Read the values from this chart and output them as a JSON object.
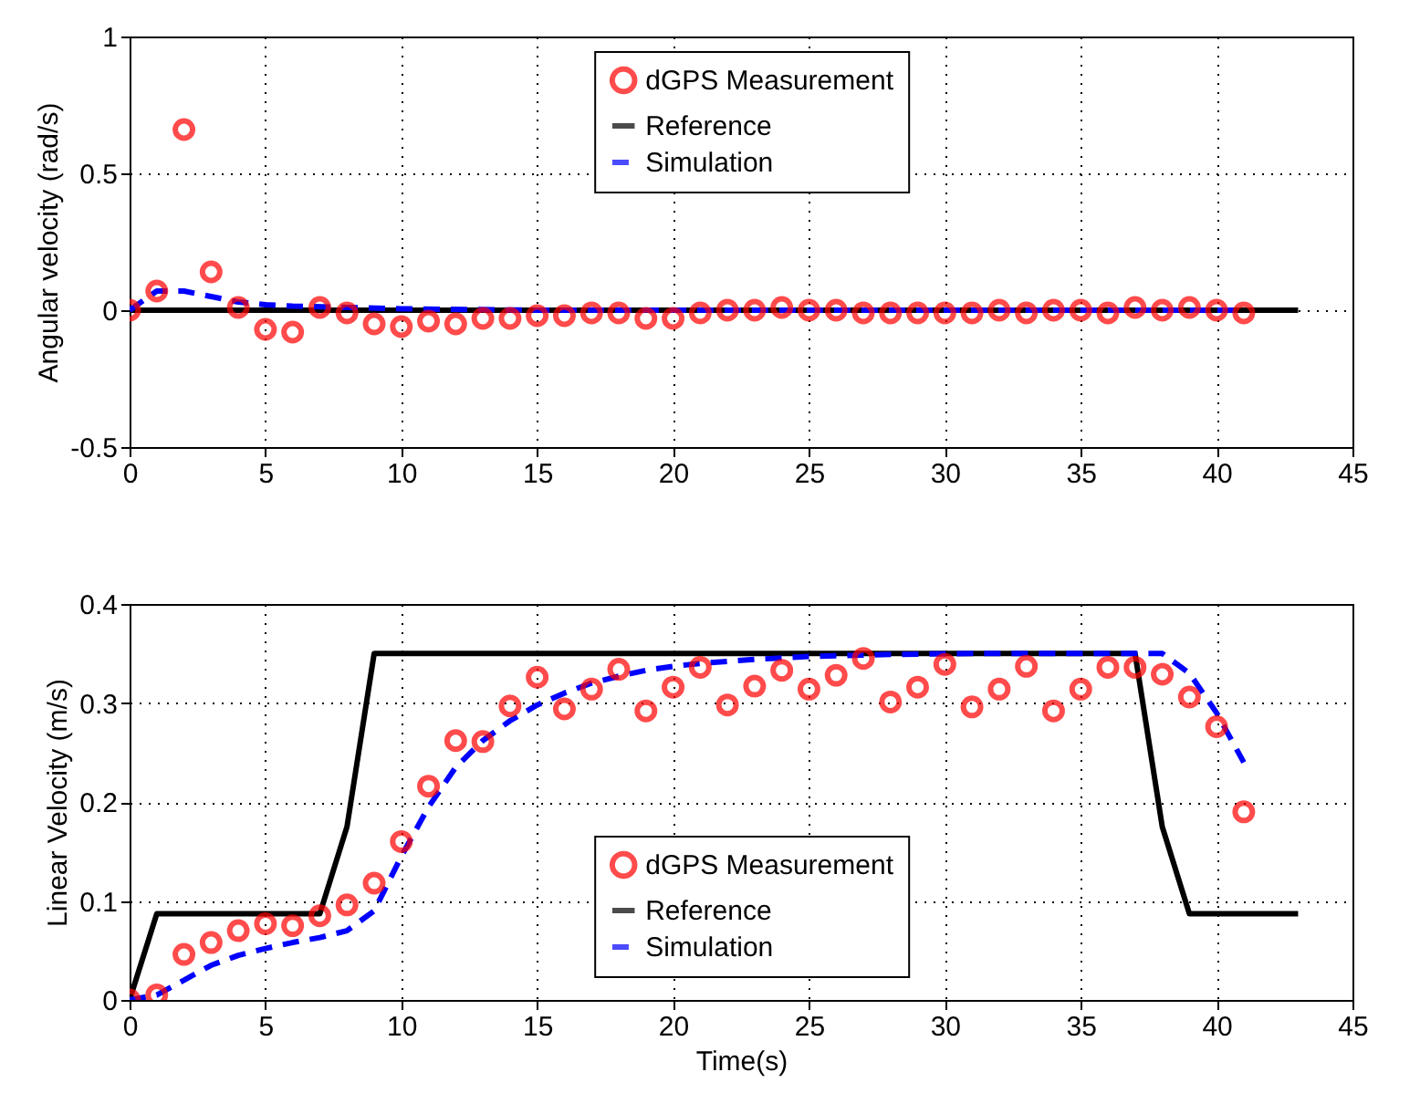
{
  "chart_data": [
    {
      "type": "line",
      "ylabel": "Angular velocity (rad/s)",
      "xlim": [
        0,
        45
      ],
      "xticks": [
        0,
        5,
        10,
        15,
        20,
        25,
        30,
        35,
        40,
        45
      ],
      "ylim": [
        -0.5,
        1
      ],
      "yticks": [
        -0.5,
        0,
        0.5,
        1
      ],
      "grid": true,
      "legend": "top right",
      "series": [
        {
          "name": "dGPS Measurement",
          "type": "scatter",
          "marker": "circle",
          "color": "#ff0000",
          "x": [
            0,
            1,
            2,
            3,
            4,
            5,
            6,
            7,
            8,
            9,
            10,
            11,
            12,
            13,
            14,
            15,
            16,
            17,
            18,
            19,
            20,
            21,
            22,
            23,
            24,
            25,
            26,
            27,
            28,
            29,
            30,
            31,
            32,
            33,
            34,
            35,
            36,
            37,
            38,
            39,
            40,
            41
          ],
          "values": [
            0,
            0.07,
            0.66,
            0.14,
            0.01,
            -0.07,
            -0.08,
            0.01,
            -0.01,
            -0.05,
            -0.06,
            -0.04,
            -0.05,
            -0.03,
            -0.03,
            -0.02,
            -0.02,
            -0.01,
            -0.01,
            -0.03,
            -0.03,
            -0.01,
            0,
            0,
            0.01,
            0,
            0,
            -0.01,
            -0.01,
            -0.01,
            -0.01,
            -0.01,
            0,
            -0.01,
            0,
            0,
            -0.01,
            0.01,
            0,
            0.01,
            0,
            -0.01
          ]
        },
        {
          "name": "Reference",
          "type": "line",
          "line_style": "solid",
          "color": "#000000",
          "x": [
            0,
            43
          ],
          "values": [
            0,
            0
          ]
        },
        {
          "name": "Simulation",
          "type": "line",
          "line_style": "dashed",
          "color": "#0000ff",
          "x": [
            0,
            1,
            2,
            3,
            4,
            5,
            6,
            8,
            10,
            15,
            41
          ],
          "values": [
            0,
            0.07,
            0.07,
            0.05,
            0.03,
            0.02,
            0.015,
            0.01,
            0.005,
            0,
            0
          ]
        }
      ]
    },
    {
      "type": "line",
      "xlabel": "Time(s)",
      "ylabel": "Linear Velocity (m/s)",
      "xlim": [
        0,
        45
      ],
      "xticks": [
        0,
        5,
        10,
        15,
        20,
        25,
        30,
        35,
        40,
        45
      ],
      "ylim": [
        0,
        0.4
      ],
      "yticks": [
        0,
        0.1,
        0.2,
        0.3,
        0.4
      ],
      "grid": true,
      "legend": "bottom",
      "series": [
        {
          "name": "dGPS Measurement",
          "type": "scatter",
          "marker": "circle",
          "color": "#ff0000",
          "x": [
            0,
            1,
            2,
            3,
            4,
            5,
            6,
            7,
            8,
            9,
            10,
            11,
            12,
            13,
            14,
            15,
            16,
            17,
            18,
            19,
            20,
            21,
            22,
            23,
            24,
            25,
            26,
            27,
            28,
            29,
            30,
            31,
            32,
            33,
            34,
            35,
            36,
            37,
            38,
            39,
            40,
            41
          ],
          "values": [
            0,
            0.005,
            0.046,
            0.058,
            0.07,
            0.077,
            0.075,
            0.085,
            0.096,
            0.118,
            0.16,
            0.216,
            0.262,
            0.261,
            0.297,
            0.326,
            0.294,
            0.314,
            0.334,
            0.292,
            0.316,
            0.336,
            0.298,
            0.317,
            0.333,
            0.314,
            0.328,
            0.345,
            0.301,
            0.316,
            0.339,
            0.296,
            0.314,
            0.337,
            0.292,
            0.314,
            0.336,
            0.336,
            0.329,
            0.306,
            0.276,
            0.19
          ]
        },
        {
          "name": "Reference",
          "type": "line",
          "line_style": "solid",
          "color": "#000000",
          "x": [
            0,
            1,
            7,
            8,
            9,
            37,
            38,
            39,
            43
          ],
          "values": [
            0,
            0.087,
            0.087,
            0.175,
            0.35,
            0.35,
            0.175,
            0.087,
            0.087
          ]
        },
        {
          "name": "Simulation",
          "type": "line",
          "line_style": "dashed",
          "color": "#0000ff",
          "x": [
            0,
            1,
            2,
            3,
            4,
            5,
            6,
            7,
            8,
            9,
            10,
            11,
            12,
            13,
            14,
            15,
            16,
            17,
            18,
            19,
            20,
            21,
            23,
            25,
            28,
            31,
            38,
            39,
            40,
            41
          ],
          "values": [
            0,
            0.005,
            0.02,
            0.035,
            0.045,
            0.052,
            0.058,
            0.063,
            0.07,
            0.09,
            0.145,
            0.195,
            0.235,
            0.262,
            0.282,
            0.298,
            0.31,
            0.32,
            0.327,
            0.333,
            0.337,
            0.34,
            0.344,
            0.347,
            0.349,
            0.35,
            0.35,
            0.33,
            0.29,
            0.24
          ]
        }
      ]
    }
  ]
}
